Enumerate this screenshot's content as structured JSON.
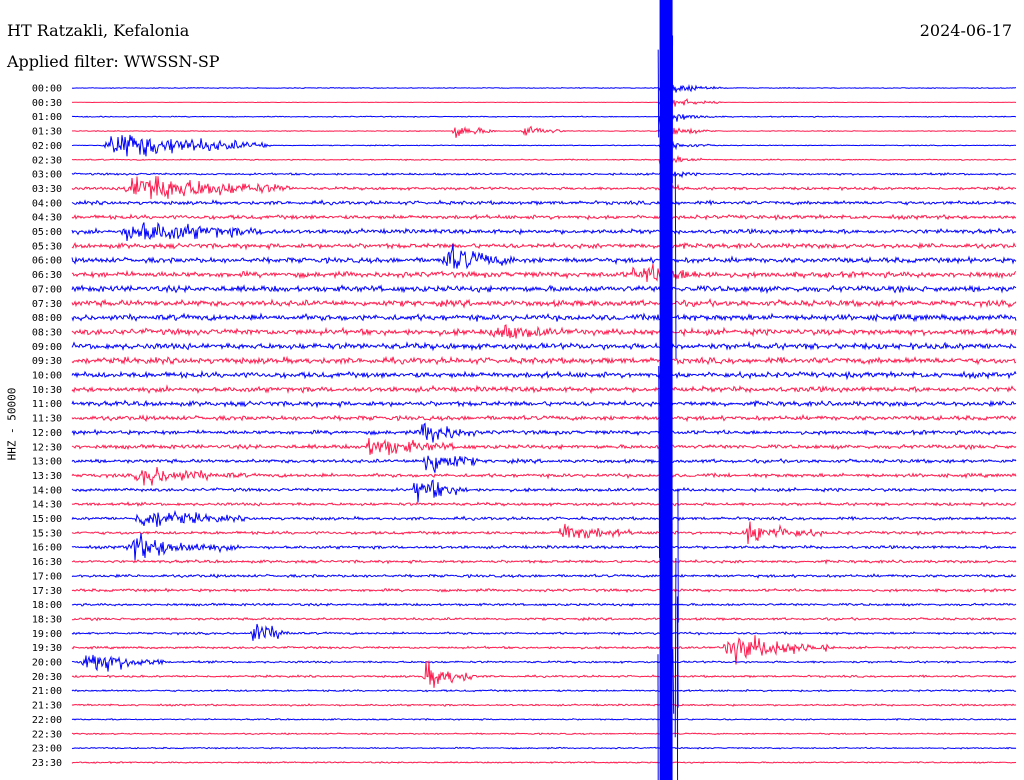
{
  "header": {
    "station": "HT Ratzakli, Kefalonia",
    "date": "2024-06-17",
    "filter": "Applied filter: WWSSN-SP",
    "channel": "HHZ - 50000"
  },
  "chart_data": {
    "type": "line",
    "title": "HT Ratzakli, Kefalonia",
    "subtitle": "Applied filter: WWSSN-SP",
    "date": "2024-06-17",
    "ylabel": "HHZ - 50000",
    "ytick_labels": [
      "00:00",
      "00:30",
      "01:00",
      "01:30",
      "02:00",
      "02:30",
      "03:00",
      "03:30",
      "04:00",
      "04:30",
      "05:00",
      "05:30",
      "06:00",
      "06:30",
      "07:00",
      "07:30",
      "08:00",
      "08:30",
      "09:00",
      "09:30",
      "10:00",
      "10:30",
      "11:00",
      "11:30",
      "12:00",
      "12:30",
      "13:00",
      "13:30",
      "14:00",
      "14:30",
      "15:00",
      "15:30",
      "16:00",
      "16:30",
      "17:00",
      "17:30",
      "18:00",
      "18:30",
      "19:00",
      "19:30",
      "20:00",
      "20:30",
      "21:00",
      "21:30",
      "22:00",
      "22:30",
      "23:00",
      "23:30"
    ],
    "x_range_minutes": [
      0,
      30
    ],
    "trace_colors": [
      "#0000ff",
      "#ff1b4e"
    ],
    "grid": false,
    "noise_level": [
      0.4,
      0.2,
      0.5,
      0.4,
      0.4,
      0.6,
      1.0,
      1.4,
      1.8,
      2.0,
      2.2,
      2.4,
      2.6,
      2.8,
      3.0,
      3.0,
      3.0,
      3.0,
      3.0,
      3.0,
      2.8,
      2.6,
      2.4,
      2.2,
      2.0,
      2.0,
      1.8,
      1.8,
      1.6,
      1.5,
      1.5,
      1.5,
      1.5,
      1.4,
      1.4,
      1.4,
      1.2,
      1.2,
      1.1,
      1.1,
      1.0,
      1.0,
      0.9,
      0.9,
      0.7,
      0.7,
      0.7,
      0.7
    ],
    "events": [
      {
        "row": 7,
        "minute": 2.1,
        "amplitude": 18,
        "duration": 3
      },
      {
        "row": 3,
        "minute": 12.2,
        "amplitude": 8,
        "duration": 0.8
      },
      {
        "row": 3,
        "minute": 14.4,
        "amplitude": 7,
        "duration": 0.8
      },
      {
        "row": 4,
        "minute": 1.5,
        "amplitude": 16,
        "duration": 3
      },
      {
        "row": 10,
        "minute": 2.0,
        "amplitude": 14,
        "duration": 3
      },
      {
        "row": 12,
        "minute": 12.0,
        "amplitude": 16,
        "duration": 1.5
      },
      {
        "row": 13,
        "minute": 18.0,
        "amplitude": 12,
        "duration": 2
      },
      {
        "row": 17,
        "minute": 13.5,
        "amplitude": 10,
        "duration": 2
      },
      {
        "row": 24,
        "minute": 11.2,
        "amplitude": 16,
        "duration": 1
      },
      {
        "row": 25,
        "minute": 9.5,
        "amplitude": 12,
        "duration": 2
      },
      {
        "row": 26,
        "minute": 11.3,
        "amplitude": 18,
        "duration": 1
      },
      {
        "row": 27,
        "minute": 2.3,
        "amplitude": 12,
        "duration": 2
      },
      {
        "row": 28,
        "minute": 11.0,
        "amplitude": 16,
        "duration": 1
      },
      {
        "row": 30,
        "minute": 2.3,
        "amplitude": 12,
        "duration": 2
      },
      {
        "row": 31,
        "minute": 15.6,
        "amplitude": 12,
        "duration": 1.5
      },
      {
        "row": 31,
        "minute": 21.5,
        "amplitude": 14,
        "duration": 1.5
      },
      {
        "row": 32,
        "minute": 2.0,
        "amplitude": 14,
        "duration": 2
      },
      {
        "row": 38,
        "minute": 5.8,
        "amplitude": 14,
        "duration": 0.8
      },
      {
        "row": 39,
        "minute": 21.0,
        "amplitude": 16,
        "duration": 2
      },
      {
        "row": 40,
        "minute": 0.5,
        "amplitude": 14,
        "duration": 1.5
      },
      {
        "row": 41,
        "minute": 11.3,
        "amplitude": 16,
        "duration": 1
      }
    ],
    "main_event": {
      "row": 0,
      "minute": 18.8,
      "amplitude": 999,
      "coda_rows": 12
    }
  }
}
